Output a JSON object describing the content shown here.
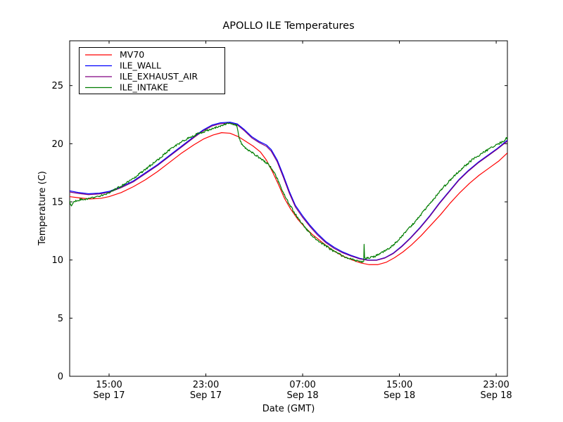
{
  "window": {
    "kind": "matplotlib-figure",
    "background": "#ffffff"
  },
  "chart_data": {
    "type": "line",
    "title": "APOLLO ILE Temperatures",
    "xlabel": "Date (GMT)",
    "ylabel": "Temperature (C)",
    "x_units": "hours since Sep 17 00:00 GMT",
    "xlim": [
      11.74,
      47.92
    ],
    "ylim": [
      0,
      28.86
    ],
    "yticks": [
      0,
      5,
      10,
      15,
      20,
      25
    ],
    "xticks": [
      {
        "t": 15,
        "time": "15:00",
        "date": "Sep 17"
      },
      {
        "t": 23,
        "time": "23:00",
        "date": "Sep 17"
      },
      {
        "t": 31,
        "time": "07:00",
        "date": "Sep 18"
      },
      {
        "t": 39,
        "time": "15:00",
        "date": "Sep 18"
      },
      {
        "t": 47,
        "time": "23:00",
        "date": "Sep 18"
      }
    ],
    "grid": false,
    "legend_position": "upper left",
    "axis_color": "#000000",
    "series": [
      {
        "name": "MV70",
        "color": "#ff0000",
        "noise": 0,
        "points": [
          [
            11.74,
            15.45
          ],
          [
            12.5,
            15.35
          ],
          [
            13.4,
            15.25
          ],
          [
            14.3,
            15.3
          ],
          [
            15.0,
            15.45
          ],
          [
            16.0,
            15.8
          ],
          [
            17.0,
            16.3
          ],
          [
            18.0,
            16.9
          ],
          [
            19.0,
            17.6
          ],
          [
            20.0,
            18.4
          ],
          [
            21.0,
            19.2
          ],
          [
            22.0,
            19.9
          ],
          [
            22.8,
            20.4
          ],
          [
            23.6,
            20.75
          ],
          [
            24.3,
            20.95
          ],
          [
            25.0,
            20.9
          ],
          [
            25.7,
            20.6
          ],
          [
            26.3,
            20.2
          ],
          [
            26.9,
            19.8
          ],
          [
            27.5,
            19.3
          ],
          [
            28.0,
            18.6
          ],
          [
            28.5,
            17.6
          ],
          [
            29.0,
            16.5
          ],
          [
            29.5,
            15.3
          ],
          [
            30.0,
            14.4
          ],
          [
            30.6,
            13.5
          ],
          [
            31.2,
            12.8
          ],
          [
            31.8,
            12.2
          ],
          [
            32.4,
            11.7
          ],
          [
            33.0,
            11.2
          ],
          [
            33.7,
            10.7
          ],
          [
            34.4,
            10.3
          ],
          [
            35.1,
            10.0
          ],
          [
            35.8,
            9.75
          ],
          [
            36.5,
            9.6
          ],
          [
            37.2,
            9.6
          ],
          [
            37.9,
            9.8
          ],
          [
            38.6,
            10.2
          ],
          [
            39.3,
            10.7
          ],
          [
            40.0,
            11.3
          ],
          [
            40.8,
            12.1
          ],
          [
            41.6,
            13.0
          ],
          [
            42.4,
            13.9
          ],
          [
            43.2,
            14.9
          ],
          [
            44.0,
            15.8
          ],
          [
            44.8,
            16.6
          ],
          [
            45.6,
            17.3
          ],
          [
            46.4,
            17.9
          ],
          [
            47.2,
            18.5
          ],
          [
            47.92,
            19.2
          ]
        ]
      },
      {
        "name": "ILE_WALL",
        "color": "#0000ff",
        "noise": 0,
        "points": [
          [
            11.74,
            15.95
          ],
          [
            12.5,
            15.8
          ],
          [
            13.3,
            15.7
          ],
          [
            14.2,
            15.75
          ],
          [
            15.0,
            15.9
          ],
          [
            16.0,
            16.3
          ],
          [
            17.0,
            16.8
          ],
          [
            18.0,
            17.5
          ],
          [
            19.0,
            18.2
          ],
          [
            20.0,
            19.0
          ],
          [
            21.0,
            19.8
          ],
          [
            22.0,
            20.6
          ],
          [
            22.8,
            21.2
          ],
          [
            23.5,
            21.6
          ],
          [
            24.2,
            21.8
          ],
          [
            25.0,
            21.85
          ],
          [
            25.6,
            21.7
          ],
          [
            26.2,
            21.2
          ],
          [
            26.8,
            20.6
          ],
          [
            27.4,
            20.2
          ],
          [
            28.0,
            19.9
          ],
          [
            28.4,
            19.5
          ],
          [
            28.9,
            18.6
          ],
          [
            29.4,
            17.3
          ],
          [
            29.9,
            15.9
          ],
          [
            30.4,
            14.7
          ],
          [
            31.0,
            13.8
          ],
          [
            31.6,
            13.0
          ],
          [
            32.2,
            12.3
          ],
          [
            32.9,
            11.6
          ],
          [
            33.6,
            11.1
          ],
          [
            34.3,
            10.7
          ],
          [
            35.0,
            10.4
          ],
          [
            35.7,
            10.15
          ],
          [
            36.4,
            10.0
          ],
          [
            37.1,
            10.0
          ],
          [
            37.8,
            10.2
          ],
          [
            38.5,
            10.6
          ],
          [
            39.2,
            11.2
          ],
          [
            39.9,
            11.9
          ],
          [
            40.7,
            12.8
          ],
          [
            41.5,
            13.8
          ],
          [
            42.3,
            14.9
          ],
          [
            43.1,
            15.9
          ],
          [
            43.9,
            16.9
          ],
          [
            44.7,
            17.7
          ],
          [
            45.5,
            18.4
          ],
          [
            46.3,
            19.0
          ],
          [
            47.1,
            19.6
          ],
          [
            47.92,
            20.3
          ]
        ]
      },
      {
        "name": "ILE_EXHAUST_AIR",
        "color": "#800080",
        "noise": 0,
        "points": [
          [
            11.74,
            15.85
          ],
          [
            12.5,
            15.72
          ],
          [
            13.3,
            15.62
          ],
          [
            14.2,
            15.68
          ],
          [
            15.0,
            15.82
          ],
          [
            16.0,
            16.22
          ],
          [
            17.0,
            16.72
          ],
          [
            18.0,
            17.42
          ],
          [
            19.0,
            18.12
          ],
          [
            20.0,
            18.92
          ],
          [
            21.0,
            19.72
          ],
          [
            22.0,
            20.52
          ],
          [
            22.8,
            21.12
          ],
          [
            23.5,
            21.52
          ],
          [
            24.2,
            21.72
          ],
          [
            25.0,
            21.77
          ],
          [
            25.6,
            21.62
          ],
          [
            26.2,
            21.1
          ],
          [
            26.8,
            20.5
          ],
          [
            27.4,
            20.1
          ],
          [
            28.0,
            19.78
          ],
          [
            28.4,
            19.36
          ],
          [
            28.9,
            18.44
          ],
          [
            29.4,
            17.12
          ],
          [
            29.9,
            15.74
          ],
          [
            30.4,
            14.56
          ],
          [
            31.0,
            13.66
          ],
          [
            31.6,
            12.88
          ],
          [
            32.2,
            12.18
          ],
          [
            32.9,
            11.5
          ],
          [
            33.6,
            11.0
          ],
          [
            34.3,
            10.62
          ],
          [
            35.0,
            10.34
          ],
          [
            35.7,
            10.1
          ],
          [
            36.4,
            9.97
          ],
          [
            37.1,
            9.97
          ],
          [
            37.8,
            10.17
          ],
          [
            38.5,
            10.56
          ],
          [
            39.2,
            11.15
          ],
          [
            39.9,
            11.85
          ],
          [
            40.7,
            12.74
          ],
          [
            41.5,
            13.74
          ],
          [
            42.3,
            14.84
          ],
          [
            43.1,
            15.84
          ],
          [
            43.9,
            16.84
          ],
          [
            44.7,
            17.64
          ],
          [
            45.5,
            18.34
          ],
          [
            46.3,
            18.94
          ],
          [
            47.1,
            19.54
          ],
          [
            47.92,
            20.22
          ]
        ]
      },
      {
        "name": "ILE_INTAKE",
        "color": "#007d00",
        "noise": 0.09,
        "points": [
          [
            11.74,
            15.1
          ],
          [
            11.85,
            14.65
          ],
          [
            12.05,
            15.0
          ],
          [
            12.6,
            15.2
          ],
          [
            13.2,
            15.25
          ],
          [
            14.0,
            15.4
          ],
          [
            15.0,
            15.8
          ],
          [
            16.0,
            16.35
          ],
          [
            17.0,
            17.0
          ],
          [
            18.0,
            17.8
          ],
          [
            19.0,
            18.6
          ],
          [
            19.8,
            19.3
          ],
          [
            20.6,
            19.9
          ],
          [
            21.4,
            20.4
          ],
          [
            22.2,
            20.8
          ],
          [
            23.0,
            21.1
          ],
          [
            23.8,
            21.4
          ],
          [
            24.4,
            21.6
          ],
          [
            24.9,
            21.75
          ],
          [
            25.3,
            21.7
          ],
          [
            25.55,
            21.55
          ],
          [
            25.75,
            20.5
          ],
          [
            25.95,
            20.0
          ],
          [
            26.3,
            19.6
          ],
          [
            26.9,
            19.2
          ],
          [
            27.5,
            18.7
          ],
          [
            28.1,
            18.3
          ],
          [
            28.5,
            17.8
          ],
          [
            28.9,
            17.0
          ],
          [
            29.3,
            16.0
          ],
          [
            29.8,
            15.0
          ],
          [
            30.3,
            14.1
          ],
          [
            30.9,
            13.2
          ],
          [
            31.5,
            12.4
          ],
          [
            32.1,
            11.8
          ],
          [
            32.8,
            11.3
          ],
          [
            33.5,
            10.8
          ],
          [
            34.2,
            10.4
          ],
          [
            34.9,
            10.1
          ],
          [
            35.5,
            9.9
          ],
          [
            36.0,
            9.8
          ],
          [
            36.05,
            9.85
          ],
          [
            36.08,
            11.3
          ],
          [
            36.12,
            10.15
          ],
          [
            36.5,
            10.2
          ],
          [
            37.0,
            10.35
          ],
          [
            37.5,
            10.6
          ],
          [
            38.0,
            10.9
          ],
          [
            38.5,
            11.3
          ],
          [
            39.0,
            11.8
          ],
          [
            39.6,
            12.5
          ],
          [
            40.3,
            13.3
          ],
          [
            41.0,
            14.2
          ],
          [
            41.8,
            15.2
          ],
          [
            42.6,
            16.2
          ],
          [
            43.4,
            17.1
          ],
          [
            44.2,
            17.9
          ],
          [
            45.0,
            18.6
          ],
          [
            45.8,
            19.15
          ],
          [
            46.6,
            19.65
          ],
          [
            47.3,
            20.05
          ],
          [
            47.7,
            20.3
          ],
          [
            47.92,
            20.55
          ]
        ]
      }
    ]
  }
}
